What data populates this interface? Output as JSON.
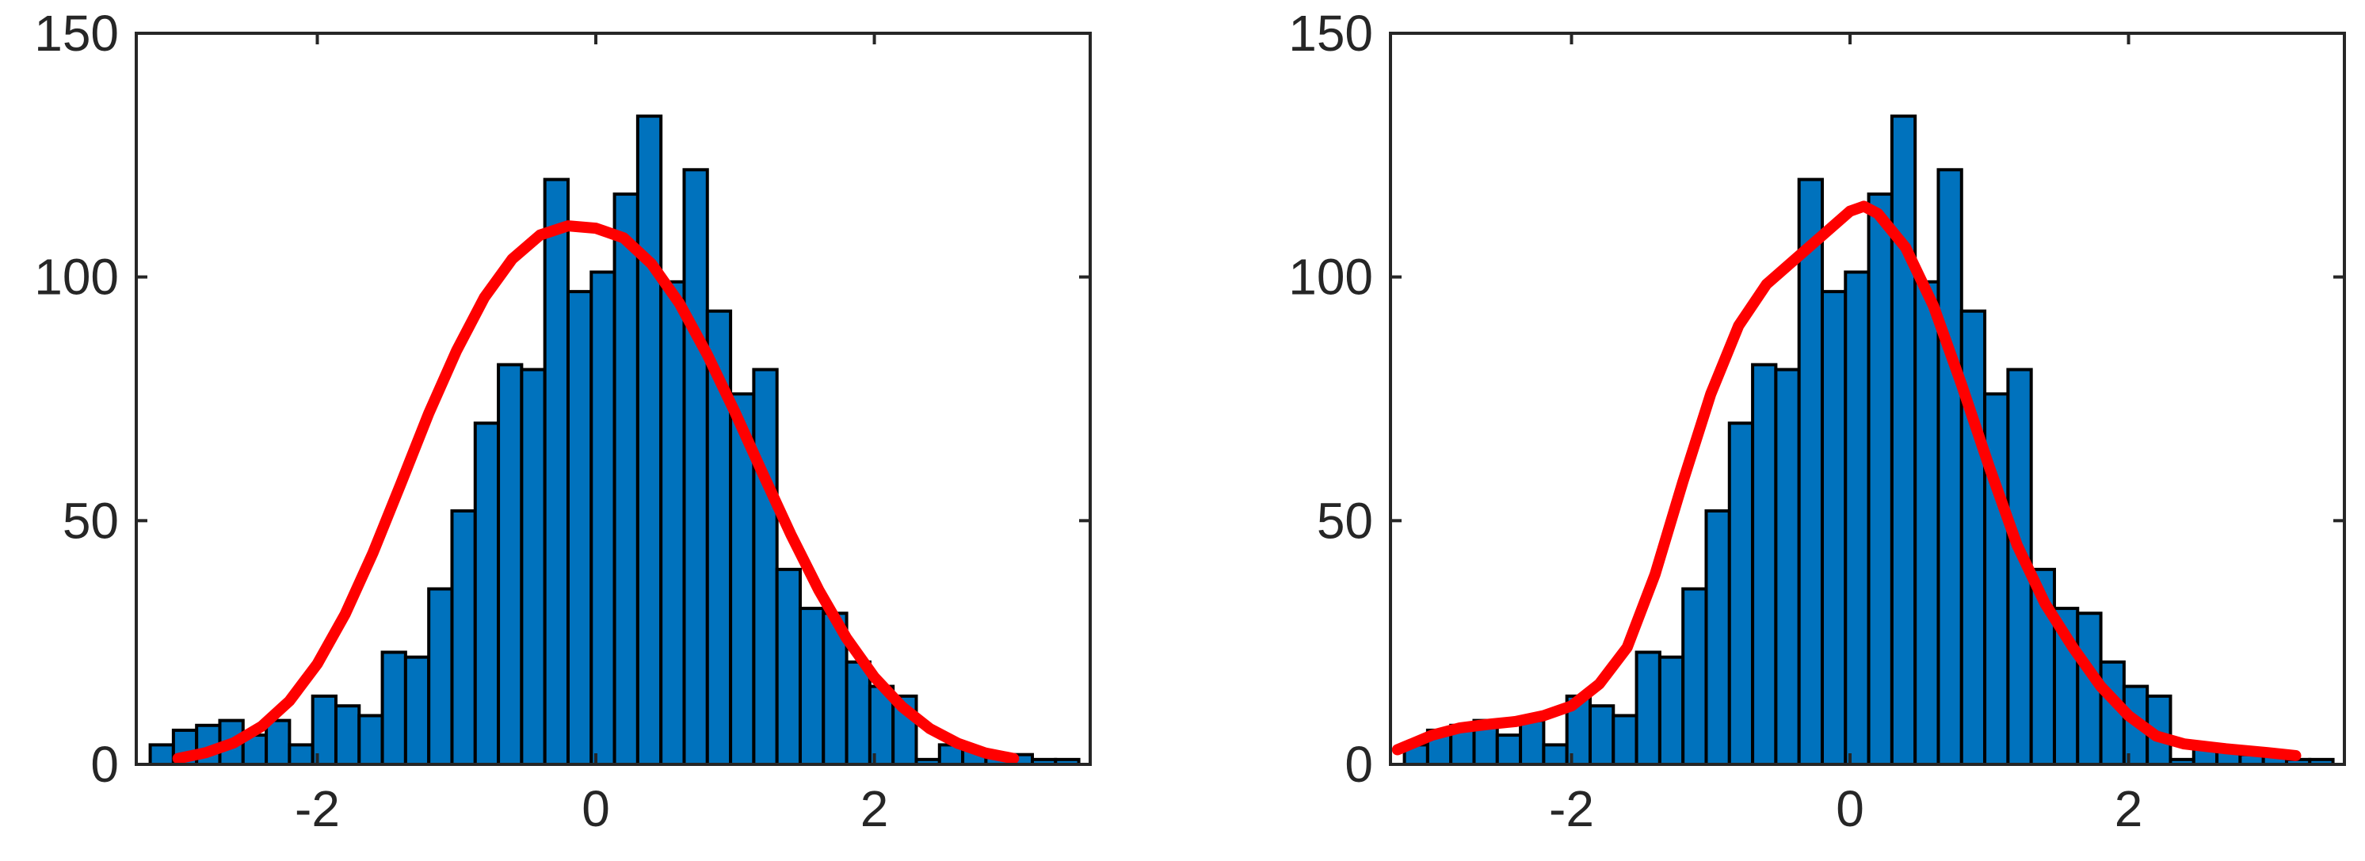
{
  "chart_data": [
    {
      "type": "bar",
      "overlay": "line",
      "xlim": [
        -3.3,
        3.55
      ],
      "ylim": [
        0,
        150
      ],
      "xticks": [
        -2,
        0,
        2
      ],
      "yticks": [
        0,
        50,
        100,
        150
      ],
      "xtick_labels": [
        "-2",
        "0",
        "2"
      ],
      "ytick_labels": [
        "0",
        "50",
        "100",
        "150"
      ],
      "grid": false,
      "colors": {
        "bar_fill": "#0072BD",
        "bar_edge": "#000000",
        "curve": "#FF0000",
        "axes": "#262626"
      },
      "bins": {
        "start": -3.2,
        "width": 0.1667,
        "counts": [
          4,
          7,
          8,
          9,
          6,
          9,
          4,
          14,
          12,
          10,
          23,
          22,
          36,
          52,
          70,
          82,
          81,
          120,
          97,
          101,
          117,
          133,
          99,
          122,
          93,
          76,
          81,
          40,
          32,
          31,
          21,
          16,
          14,
          1,
          4,
          3,
          2,
          2,
          1,
          1
        ]
      },
      "curve": {
        "x": [
          -3.0,
          -2.8,
          -2.6,
          -2.4,
          -2.2,
          -2.0,
          -1.8,
          -1.6,
          -1.4,
          -1.2,
          -1.0,
          -0.8,
          -0.6,
          -0.4,
          -0.2,
          0.0,
          0.2,
          0.4,
          0.6,
          0.8,
          1.0,
          1.2,
          1.4,
          1.6,
          1.8,
          2.0,
          2.2,
          2.4,
          2.6,
          2.8,
          3.0
        ],
        "y": [
          1.2,
          2.4,
          4.4,
          7.8,
          13.0,
          20.6,
          30.8,
          43.4,
          57.6,
          72.0,
          84.9,
          95.8,
          103.7,
          108.6,
          110.5,
          110.0,
          108.0,
          102.7,
          94.6,
          84.1,
          72.2,
          59.6,
          47.2,
          35.8,
          25.9,
          17.9,
          11.8,
          7.3,
          4.3,
          2.3,
          1.2
        ]
      }
    },
    {
      "type": "bar",
      "overlay": "line",
      "xlim": [
        -3.3,
        3.55
      ],
      "ylim": [
        0,
        150
      ],
      "xticks": [
        -2,
        0,
        2
      ],
      "yticks": [
        0,
        50,
        100,
        150
      ],
      "xtick_labels": [
        "-2",
        "0",
        "2"
      ],
      "ytick_labels": [
        "0",
        "50",
        "100",
        "150"
      ],
      "grid": false,
      "colors": {
        "bar_fill": "#0072BD",
        "bar_edge": "#000000",
        "curve": "#FF0000",
        "axes": "#262626"
      },
      "bins": {
        "start": -3.2,
        "width": 0.1667,
        "counts": [
          4,
          7,
          8,
          9,
          6,
          9,
          4,
          14,
          12,
          10,
          23,
          22,
          36,
          52,
          70,
          82,
          81,
          120,
          97,
          101,
          117,
          133,
          99,
          122,
          93,
          76,
          81,
          40,
          32,
          31,
          21,
          16,
          14,
          1,
          4,
          3,
          2,
          2,
          1,
          1
        ]
      },
      "curve": {
        "x": [
          -3.25,
          -3.0,
          -2.8,
          -2.6,
          -2.4,
          -2.2,
          -2.0,
          -1.8,
          -1.6,
          -1.4,
          -1.2,
          -1.0,
          -0.8,
          -0.6,
          -0.4,
          -0.2,
          0.0,
          0.1,
          0.2,
          0.4,
          0.6,
          0.8,
          1.0,
          1.2,
          1.4,
          1.6,
          1.8,
          2.0,
          2.2,
          2.4,
          2.7,
          3.0,
          3.2
        ],
        "y": [
          3.0,
          6.0,
          7.5,
          8.2,
          8.8,
          10.0,
          12.0,
          16.5,
          24.0,
          39.0,
          58.0,
          76.0,
          90.0,
          98.5,
          103.5,
          108.5,
          113.5,
          114.5,
          113.0,
          106.0,
          94.0,
          78.0,
          61.0,
          45.0,
          33.0,
          24.0,
          16.0,
          10.0,
          5.8,
          4.2,
          3.2,
          2.4,
          1.8
        ]
      }
    }
  ]
}
